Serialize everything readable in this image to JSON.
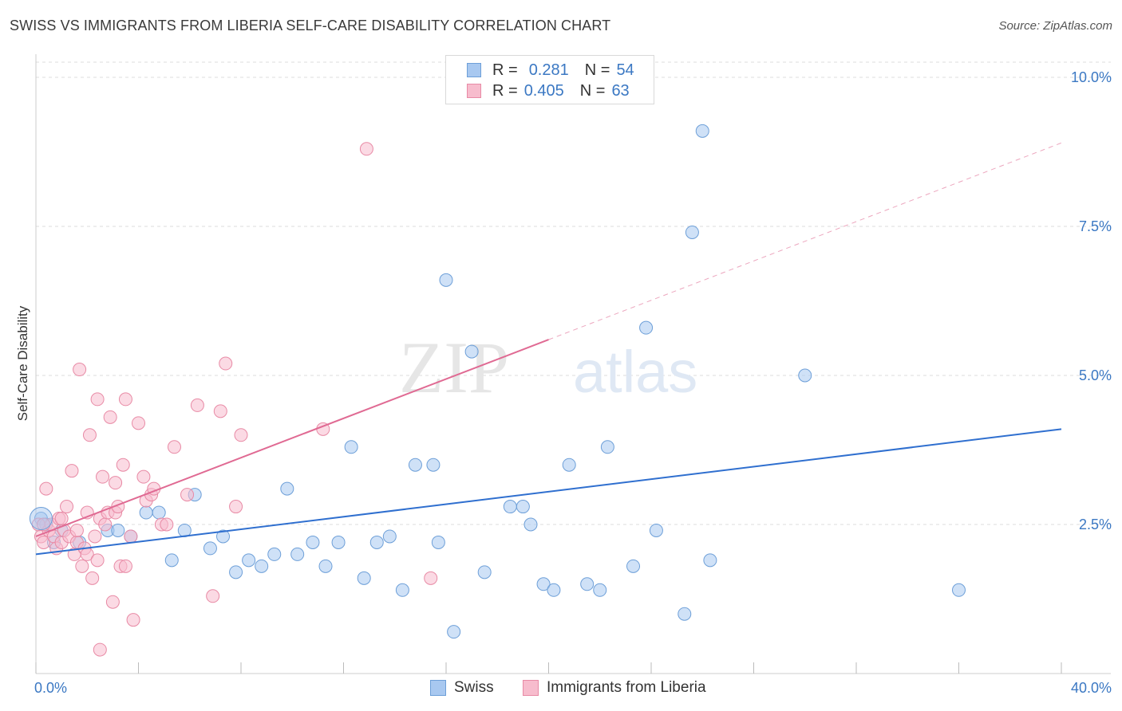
{
  "title": "SWISS VS IMMIGRANTS FROM LIBERIA SELF-CARE DISABILITY CORRELATION CHART",
  "source": "Source: ZipAtlas.com",
  "watermark": {
    "part1": "ZIP",
    "part2": "atlas"
  },
  "legend_top": {
    "rows": [
      {
        "r_label": "R =",
        "r_value": "0.281",
        "n_label": "N =",
        "n_value": "54",
        "color": "#a8c8f0",
        "border": "#6d9fd8"
      },
      {
        "r_label": "R =",
        "r_value": "0.405",
        "n_label": "N =",
        "n_value": "63",
        "color": "#f7bccd",
        "border": "#e88aa5"
      }
    ]
  },
  "legend_bottom": {
    "items": [
      {
        "label": "Swiss",
        "color": "#a8c8f0",
        "border": "#6d9fd8"
      },
      {
        "label": "Immigrants from Liberia",
        "color": "#f7bccd",
        "border": "#e88aa5"
      }
    ]
  },
  "chart_data": {
    "type": "scatter",
    "title": "SWISS VS IMMIGRANTS FROM LIBERIA SELF-CARE DISABILITY CORRELATION CHART",
    "xlabel": "",
    "ylabel": "Self-Care Disability",
    "xlim": [
      0,
      40
    ],
    "ylim": [
      0,
      10.5
    ],
    "x_tick_labels": [
      "0.0%",
      "40.0%"
    ],
    "y_ticks": [
      2.5,
      5.0,
      7.5,
      10.0
    ],
    "y_tick_labels": [
      "2.5%",
      "5.0%",
      "7.5%",
      "10.0%"
    ],
    "grid": "horizontal dashed",
    "legend": "bottom-center",
    "series": [
      {
        "name": "Swiss",
        "color": "#a8c8f0",
        "stroke": "#6d9fd8",
        "trend_color": "#2f6fcf",
        "trend": {
          "x0": 0.0,
          "y0": 2.0,
          "x1": 40.0,
          "y1": 4.1
        },
        "points": [
          [
            0.2,
            2.6
          ],
          [
            0.4,
            2.5
          ],
          [
            0.7,
            2.2
          ],
          [
            1.0,
            2.4
          ],
          [
            1.7,
            2.2
          ],
          [
            2.8,
            2.4
          ],
          [
            3.2,
            2.4
          ],
          [
            3.7,
            2.3
          ],
          [
            4.3,
            2.7
          ],
          [
            4.8,
            2.7
          ],
          [
            5.3,
            1.9
          ],
          [
            5.8,
            2.4
          ],
          [
            6.2,
            3.0
          ],
          [
            6.8,
            2.1
          ],
          [
            7.3,
            2.3
          ],
          [
            7.8,
            1.7
          ],
          [
            8.3,
            1.9
          ],
          [
            8.8,
            1.8
          ],
          [
            9.3,
            2.0
          ],
          [
            9.8,
            3.1
          ],
          [
            10.2,
            2.0
          ],
          [
            10.8,
            2.2
          ],
          [
            11.3,
            1.8
          ],
          [
            11.8,
            2.2
          ],
          [
            12.3,
            3.8
          ],
          [
            12.8,
            1.6
          ],
          [
            13.3,
            2.2
          ],
          [
            13.8,
            2.3
          ],
          [
            14.3,
            1.4
          ],
          [
            14.8,
            3.5
          ],
          [
            15.5,
            3.5
          ],
          [
            15.7,
            2.2
          ],
          [
            16.0,
            6.6
          ],
          [
            16.3,
            0.7
          ],
          [
            17.0,
            5.4
          ],
          [
            17.5,
            1.7
          ],
          [
            18.5,
            2.8
          ],
          [
            19.0,
            2.8
          ],
          [
            19.3,
            2.5
          ],
          [
            19.8,
            1.5
          ],
          [
            20.2,
            1.4
          ],
          [
            20.8,
            3.5
          ],
          [
            21.5,
            1.5
          ],
          [
            22.0,
            1.4
          ],
          [
            22.3,
            3.8
          ],
          [
            23.3,
            1.8
          ],
          [
            23.8,
            5.8
          ],
          [
            24.2,
            2.4
          ],
          [
            25.3,
            1.0
          ],
          [
            25.6,
            7.4
          ],
          [
            26.0,
            9.1
          ],
          [
            26.3,
            1.9
          ],
          [
            30.0,
            5.0
          ],
          [
            36.0,
            1.4
          ]
        ]
      },
      {
        "name": "Immigrants from Liberia",
        "color": "#f7bccd",
        "stroke": "#e88aa5",
        "trend_color": "#e06a93",
        "trend": {
          "x0": 0.0,
          "y0": 2.3,
          "x1": 20.0,
          "y1": 5.6
        },
        "trend_extension": {
          "x0": 20.0,
          "y0": 5.6,
          "x1": 40.0,
          "y1": 8.9
        },
        "points": [
          [
            0.1,
            2.5
          ],
          [
            0.2,
            2.3
          ],
          [
            0.3,
            2.2
          ],
          [
            0.4,
            3.1
          ],
          [
            0.5,
            2.4
          ],
          [
            0.6,
            2.5
          ],
          [
            0.7,
            2.3
          ],
          [
            0.8,
            2.1
          ],
          [
            0.9,
            2.6
          ],
          [
            1.0,
            2.2
          ],
          [
            1.1,
            2.4
          ],
          [
            1.2,
            2.8
          ],
          [
            1.3,
            2.3
          ],
          [
            1.4,
            3.4
          ],
          [
            1.5,
            2.0
          ],
          [
            1.6,
            2.2
          ],
          [
            1.6,
            2.4
          ],
          [
            1.7,
            5.1
          ],
          [
            1.8,
            1.8
          ],
          [
            1.9,
            2.1
          ],
          [
            2.0,
            2.0
          ],
          [
            2.0,
            2.7
          ],
          [
            2.1,
            4.0
          ],
          [
            2.2,
            1.6
          ],
          [
            2.3,
            2.3
          ],
          [
            2.4,
            1.9
          ],
          [
            2.4,
            4.6
          ],
          [
            2.5,
            2.6
          ],
          [
            2.6,
            3.3
          ],
          [
            2.7,
            2.5
          ],
          [
            2.8,
            2.7
          ],
          [
            2.9,
            4.3
          ],
          [
            3.0,
            1.2
          ],
          [
            3.1,
            3.2
          ],
          [
            3.1,
            2.7
          ],
          [
            3.2,
            2.8
          ],
          [
            3.3,
            1.8
          ],
          [
            3.4,
            3.5
          ],
          [
            3.5,
            4.6
          ],
          [
            3.5,
            1.8
          ],
          [
            3.7,
            2.3
          ],
          [
            3.8,
            0.9
          ],
          [
            4.0,
            4.2
          ],
          [
            4.2,
            3.3
          ],
          [
            4.3,
            2.9
          ],
          [
            4.5,
            3.0
          ],
          [
            4.6,
            3.1
          ],
          [
            4.9,
            2.5
          ],
          [
            5.1,
            2.5
          ],
          [
            5.4,
            3.8
          ],
          [
            5.9,
            3.0
          ],
          [
            6.3,
            4.5
          ],
          [
            6.9,
            1.3
          ],
          [
            7.2,
            4.4
          ],
          [
            7.4,
            5.2
          ],
          [
            7.8,
            2.8
          ],
          [
            8.0,
            4.0
          ],
          [
            11.2,
            4.1
          ],
          [
            12.9,
            8.8
          ],
          [
            15.4,
            1.6
          ],
          [
            2.5,
            0.4
          ],
          [
            0.3,
            2.5
          ],
          [
            1.0,
            2.6
          ]
        ]
      }
    ]
  }
}
